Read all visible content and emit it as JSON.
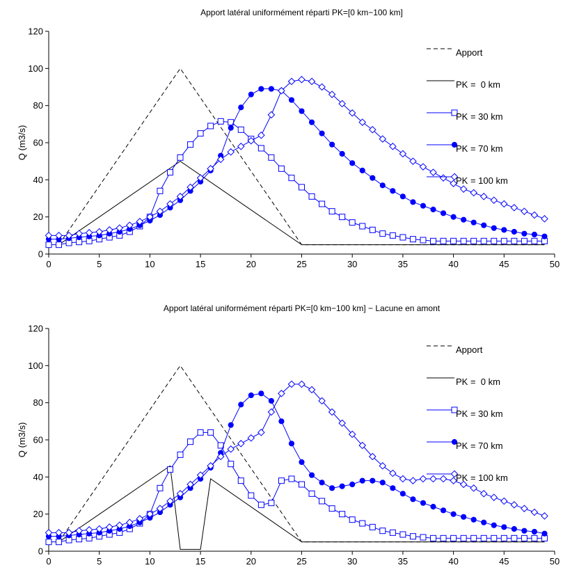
{
  "chart_data": [
    {
      "type": "line",
      "title": "Apport latéral uniformément réparti PK=[0 km−100 km]",
      "xlabel": "",
      "ylabel": "Q (m3/s)",
      "xlim": [
        0,
        50
      ],
      "ylim": [
        0,
        120
      ],
      "xticks": [
        "0",
        "5",
        "10",
        "15",
        "20",
        "25",
        "30",
        "35",
        "40",
        "45",
        "50"
      ],
      "yticks": [
        "0",
        "20",
        "40",
        "60",
        "80",
        "100",
        "120"
      ],
      "grid": false,
      "legend_position": "top-right",
      "series": [
        {
          "name": "Apport",
          "style": "dashed",
          "marker": "none",
          "color": "#000000",
          "x": [
            1,
            13,
            25,
            49
          ],
          "y": [
            5,
            100,
            5,
            5
          ]
        },
        {
          "name": "PK =  0 km",
          "style": "solid",
          "marker": "none",
          "color": "#000000",
          "x": [
            1,
            13,
            25,
            49
          ],
          "y": [
            5,
            50,
            5,
            5
          ]
        },
        {
          "name": "PK = 30 km",
          "style": "solid",
          "marker": "square",
          "color": "#0000ff",
          "x": [
            0,
            1,
            2,
            3,
            4,
            5,
            6,
            7,
            8,
            9,
            10,
            11,
            12,
            13,
            14,
            15,
            16,
            17,
            18,
            19,
            20,
            21,
            22,
            23,
            24,
            25,
            26,
            27,
            28,
            29,
            30,
            31,
            32,
            33,
            34,
            35,
            36,
            37,
            38,
            39,
            40,
            41,
            42,
            43,
            44,
            45,
            46,
            47,
            48,
            49
          ],
          "y": [
            5,
            5,
            6,
            6.5,
            7,
            8,
            9,
            10,
            12,
            15,
            20,
            34,
            44,
            52,
            59,
            65,
            69,
            71.5,
            71,
            67,
            62,
            57,
            52,
            46,
            41,
            36,
            31,
            27,
            23,
            20,
            17,
            15,
            13,
            11,
            10,
            9,
            8,
            7.5,
            7,
            7,
            7,
            7,
            7,
            7,
            7,
            7,
            7,
            7,
            7,
            7
          ]
        },
        {
          "name": "PK = 70 km",
          "style": "solid",
          "marker": "filled-circle",
          "color": "#0000ff",
          "x": [
            0,
            1,
            2,
            3,
            4,
            5,
            6,
            7,
            8,
            9,
            10,
            11,
            12,
            13,
            14,
            15,
            16,
            17,
            18,
            19,
            20,
            21,
            22,
            23,
            24,
            25,
            26,
            27,
            28,
            29,
            30,
            31,
            32,
            33,
            34,
            35,
            36,
            37,
            38,
            39,
            40,
            41,
            42,
            43,
            44,
            45,
            46,
            47,
            48,
            49
          ],
          "y": [
            8,
            8,
            8.5,
            9,
            9.5,
            10,
            11,
            12,
            13.5,
            15.5,
            18,
            21,
            25,
            29,
            34,
            39,
            45,
            53,
            68,
            79,
            86,
            89,
            89,
            88,
            83,
            77,
            71,
            65,
            59,
            54,
            49,
            45,
            41,
            37,
            34,
            31,
            28,
            26,
            24,
            22,
            20,
            18.5,
            17,
            15.5,
            14,
            13,
            12,
            11,
            10.5,
            9.5
          ]
        },
        {
          "name": "PK = 100 km",
          "style": "solid",
          "marker": "open-diamond",
          "color": "#0000ff",
          "x": [
            0,
            1,
            2,
            3,
            4,
            5,
            6,
            7,
            8,
            9,
            10,
            11,
            12,
            13,
            14,
            15,
            16,
            17,
            18,
            19,
            20,
            21,
            22,
            23,
            24,
            25,
            26,
            27,
            28,
            29,
            30,
            31,
            32,
            33,
            34,
            35,
            36,
            37,
            38,
            39,
            40,
            41,
            42,
            43,
            44,
            45,
            46,
            47,
            48,
            49
          ],
          "y": [
            10,
            10,
            10,
            11,
            11.5,
            12,
            13,
            14,
            15.5,
            17.5,
            20,
            23,
            27,
            31,
            36,
            41,
            46,
            51,
            55,
            58,
            61,
            64,
            75,
            88,
            93,
            94,
            93,
            90,
            86,
            81,
            76,
            71,
            67,
            62,
            58,
            54,
            50,
            47,
            44,
            41,
            38,
            35,
            33,
            31,
            29,
            27,
            25,
            23,
            21,
            19
          ]
        }
      ]
    },
    {
      "type": "line",
      "title": "Apport latéral uniformément réparti PK=[0 km−100 km] − Lacune en amont",
      "xlabel": "",
      "ylabel": "Q (m3/s)",
      "xlim": [
        0,
        50
      ],
      "ylim": [
        0,
        120
      ],
      "xticks": [
        "0",
        "5",
        "10",
        "15",
        "20",
        "25",
        "30",
        "35",
        "40",
        "45",
        "50"
      ],
      "yticks": [
        "0",
        "20",
        "40",
        "60",
        "80",
        "100",
        "120"
      ],
      "grid": false,
      "legend_position": "top-right",
      "series": [
        {
          "name": "Apport",
          "style": "dashed",
          "marker": "none",
          "color": "#000000",
          "x": [
            1,
            13,
            25,
            49
          ],
          "y": [
            5,
            100,
            5,
            5
          ]
        },
        {
          "name": "PK =  0 km",
          "style": "solid",
          "marker": "none",
          "color": "#000000",
          "x": [
            1,
            12,
            13,
            15,
            16,
            25,
            49
          ],
          "y": [
            5,
            46,
            1,
            1,
            39,
            5,
            5
          ]
        },
        {
          "name": "PK = 30 km",
          "style": "solid",
          "marker": "square",
          "color": "#0000ff",
          "x": [
            0,
            1,
            2,
            3,
            4,
            5,
            6,
            7,
            8,
            9,
            10,
            11,
            12,
            13,
            14,
            15,
            16,
            17,
            18,
            19,
            20,
            21,
            22,
            23,
            24,
            25,
            26,
            27,
            28,
            29,
            30,
            31,
            32,
            33,
            34,
            35,
            36,
            37,
            38,
            39,
            40,
            41,
            42,
            43,
            44,
            45,
            46,
            47,
            48,
            49
          ],
          "y": [
            5,
            5,
            6,
            6.5,
            7,
            8,
            9,
            10,
            12,
            15,
            20,
            34,
            44,
            52,
            59,
            64,
            64,
            57,
            47,
            38,
            30,
            25,
            26,
            38,
            39,
            36,
            31,
            27,
            23,
            20,
            17,
            15,
            13,
            11,
            10,
            9,
            8,
            7.5,
            7,
            7,
            7,
            7,
            7,
            7,
            7,
            7,
            7,
            7,
            7,
            7
          ]
        },
        {
          "name": "PK = 70 km",
          "style": "solid",
          "marker": "filled-circle",
          "color": "#0000ff",
          "x": [
            0,
            1,
            2,
            3,
            4,
            5,
            6,
            7,
            8,
            9,
            10,
            11,
            12,
            13,
            14,
            15,
            16,
            17,
            18,
            19,
            20,
            21,
            22,
            23,
            24,
            25,
            26,
            27,
            28,
            29,
            30,
            31,
            32,
            33,
            34,
            35,
            36,
            37,
            38,
            39,
            40,
            41,
            42,
            43,
            44,
            45,
            46,
            47,
            48,
            49
          ],
          "y": [
            8,
            8,
            8.5,
            9,
            9.5,
            10,
            11,
            12,
            13.5,
            15.5,
            18,
            21,
            25,
            29,
            34,
            39,
            45,
            53,
            68,
            79,
            84,
            85,
            81,
            70,
            58,
            48,
            41,
            37,
            34,
            35,
            36,
            38,
            38,
            37,
            34,
            31,
            28,
            26,
            24,
            22,
            20,
            18.5,
            17,
            15.5,
            14,
            13,
            12,
            11,
            10.5,
            9.5
          ]
        },
        {
          "name": "PK = 100 km",
          "style": "solid",
          "marker": "open-diamond",
          "color": "#0000ff",
          "x": [
            0,
            1,
            2,
            3,
            4,
            5,
            6,
            7,
            8,
            9,
            10,
            11,
            12,
            13,
            14,
            15,
            16,
            17,
            18,
            19,
            20,
            21,
            22,
            23,
            24,
            25,
            26,
            27,
            28,
            29,
            30,
            31,
            32,
            33,
            34,
            35,
            36,
            37,
            38,
            39,
            40,
            41,
            42,
            43,
            44,
            45,
            46,
            47,
            48,
            49
          ],
          "y": [
            10,
            10,
            10,
            11,
            11.5,
            12,
            13,
            14,
            15.5,
            17.5,
            20,
            23,
            27,
            31,
            36,
            41,
            46,
            51,
            55,
            58,
            61,
            64,
            75,
            85,
            90,
            90,
            87,
            81,
            75,
            69,
            63,
            57,
            51,
            46,
            42,
            39,
            38,
            39,
            39,
            39,
            38,
            36,
            34,
            31,
            29,
            27,
            25,
            23,
            21,
            19
          ]
        }
      ]
    }
  ]
}
